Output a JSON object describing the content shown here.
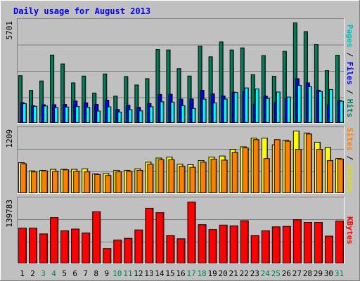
{
  "chart_data": [
    {
      "type": "bar",
      "title": "Daily usage for August 2013",
      "ylabel_max": "5701",
      "axis_labels": [
        "Pages",
        "Files",
        "Hits"
      ],
      "categories": [
        "1",
        "2",
        "3",
        "4",
        "5",
        "6",
        "7",
        "8",
        "9",
        "10",
        "11",
        "12",
        "13",
        "14",
        "15",
        "16",
        "17",
        "18",
        "19",
        "20",
        "21",
        "22",
        "23",
        "24",
        "25",
        "26",
        "27",
        "28",
        "29",
        "30",
        "31"
      ],
      "weekend_days": [
        3,
        4,
        10,
        11,
        17,
        18,
        24,
        25,
        31
      ],
      "ylim": [
        0,
        5701
      ],
      "series": [
        {
          "name": "Hits",
          "color": "#00805C",
          "values": [
            2680,
            1840,
            2380,
            3860,
            3350,
            2270,
            2660,
            1690,
            2780,
            1510,
            2630,
            2150,
            2510,
            4170,
            4150,
            3080,
            2660,
            4370,
            3760,
            4610,
            4150,
            4270,
            2740,
            3830,
            2650,
            4070,
            5701,
            5200,
            4460,
            2970,
            3850
          ]
        },
        {
          "name": "Files",
          "color": "#0000FF",
          "values": [
            1140,
            960,
            1020,
            1020,
            1040,
            1230,
            1130,
            1040,
            1280,
            750,
            990,
            870,
            1090,
            1610,
            1620,
            1340,
            1350,
            1840,
            1640,
            1520,
            1740,
            1770,
            1050,
            1510,
            1150,
            1380,
            2510,
            2270,
            1850,
            1020,
            1260
          ]
        },
        {
          "name": "Pages",
          "color": "#00FFFF",
          "values": [
            1080,
            930,
            950,
            850,
            890,
            920,
            870,
            660,
            900,
            600,
            740,
            670,
            910,
            1190,
            1170,
            970,
            810,
            1340,
            1120,
            1340,
            1720,
            1980,
            1920,
            1380,
            1750,
            1460,
            2130,
            2050,
            1780,
            1890,
            1220
          ]
        }
      ]
    },
    {
      "type": "bar",
      "ylabel_max": "1209",
      "axis_labels": [
        "Sites",
        "Visits"
      ],
      "categories": [
        "1",
        "2",
        "3",
        "4",
        "5",
        "6",
        "7",
        "8",
        "9",
        "10",
        "11",
        "12",
        "13",
        "14",
        "15",
        "16",
        "17",
        "18",
        "19",
        "20",
        "21",
        "22",
        "23",
        "24",
        "25",
        "26",
        "27",
        "28",
        "29",
        "30",
        "31"
      ],
      "ylim": [
        0,
        1209
      ],
      "series": [
        {
          "name": "Visits",
          "color": "#FFFF00",
          "values": [
            590,
            430,
            440,
            460,
            460,
            460,
            470,
            370,
            380,
            440,
            440,
            470,
            600,
            680,
            700,
            560,
            550,
            630,
            700,
            720,
            850,
            900,
            1070,
            1070,
            940,
            1030,
            1209,
            1170,
            990,
            890,
            670
          ]
        },
        {
          "name": "Sites",
          "color": "#FF8000",
          "values": [
            570,
            410,
            430,
            420,
            450,
            420,
            410,
            360,
            340,
            410,
            420,
            440,
            560,
            650,
            650,
            520,
            500,
            600,
            660,
            640,
            790,
            880,
            1040,
            670,
            1040,
            1010,
            850,
            1150,
            850,
            630,
            660
          ]
        }
      ]
    },
    {
      "type": "bar",
      "ylabel_max": "139783",
      "axis_labels": [
        "KBytes"
      ],
      "categories": [
        "1",
        "2",
        "3",
        "4",
        "5",
        "6",
        "7",
        "8",
        "9",
        "10",
        "11",
        "12",
        "13",
        "14",
        "15",
        "16",
        "17",
        "18",
        "19",
        "20",
        "21",
        "22",
        "23",
        "24",
        "25",
        "26",
        "27",
        "28",
        "29",
        "30",
        "31"
      ],
      "ylim": [
        0,
        139783
      ],
      "series": [
        {
          "name": "KBytes",
          "color": "#FF0000",
          "values": [
            79000,
            79000,
            66000,
            103000,
            73000,
            77000,
            68000,
            116000,
            33000,
            52000,
            56000,
            75000,
            124000,
            114000,
            62000,
            55000,
            138000,
            87000,
            76000,
            86000,
            84000,
            96000,
            62000,
            73000,
            82000,
            83000,
            98000,
            92000,
            92000,
            61000,
            95000
          ]
        }
      ]
    }
  ]
}
